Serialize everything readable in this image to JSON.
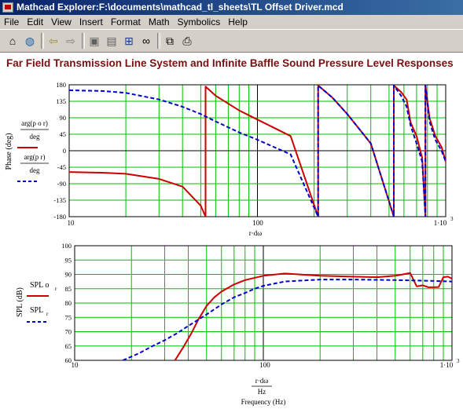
{
  "window": {
    "title": "Mathcad Explorer:F:\\documents\\mathcad_tl_sheets\\TL Offset Driver.mcd"
  },
  "menu": [
    "File",
    "Edit",
    "View",
    "Insert",
    "Format",
    "Math",
    "Symbolics",
    "Help"
  ],
  "toolbar": {
    "icons": [
      "home-icon",
      "globe-icon",
      "back-arrow-icon",
      "forward-arrow-icon",
      "copy-region-icon",
      "paste-region-icon",
      "find-icon",
      "binoculars-icon",
      "copy-icon",
      "print-icon"
    ]
  },
  "heading": "Far Field Transmission Line System and Infinite Baffle Sound Pressure Level Responses",
  "phase_chart": {
    "ylabel": "Phase (deg)",
    "legend": [
      {
        "top": "arg(p o r)",
        "bottom": "deg",
        "color": "#cc0000",
        "style": "solid"
      },
      {
        "top": "arg(p r)",
        "bottom": "deg",
        "color": "#0000cc",
        "style": "dashed"
      }
    ],
    "xticks": [
      "10",
      "100",
      "1·10"
    ],
    "xtick_exp": "3",
    "xlabel_fragment": "r·dω"
  },
  "spl_chart": {
    "ylabel": "SPL (dB)",
    "legend": [
      {
        "top": "SPL o",
        "sub": "r",
        "color": "#cc0000",
        "style": "solid"
      },
      {
        "top": "SPL",
        "sub": "r",
        "color": "#0000cc",
        "style": "dashed"
      }
    ],
    "xticks": [
      "10",
      "100",
      "1·10"
    ],
    "xtick_exp": "3",
    "xlabel_num": "r·dω",
    "xlabel_den": "Hz",
    "xlabel": "Frequency (Hz)"
  },
  "chart_data": [
    {
      "type": "line",
      "xscale": "log",
      "xlim": [
        10,
        1000
      ],
      "ylim": [
        -180,
        180
      ],
      "yticks": [
        180,
        135,
        90,
        45,
        0,
        -45,
        -90,
        -135,
        -180
      ],
      "ylabel": "Phase (deg)",
      "grid": true,
      "series": [
        {
          "name": "arg(p o r)/deg",
          "color": "#cc0000",
          "style": "solid",
          "x": [
            10,
            15,
            20,
            30,
            40,
            50,
            53,
            53,
            60,
            80,
            100,
            150,
            210,
            210,
            250,
            300,
            400,
            530,
            530,
            580,
            620,
            650,
            700,
            750,
            780,
            780,
            820,
            880,
            950,
            1000
          ],
          "y": [
            -58,
            -60,
            -63,
            -77,
            -98,
            -150,
            -180,
            175,
            150,
            110,
            85,
            40,
            -180,
            178,
            145,
            100,
            20,
            -180,
            178,
            160,
            140,
            78,
            40,
            -20,
            -180,
            178,
            90,
            40,
            10,
            -30
          ]
        },
        {
          "name": "arg(p r)/deg",
          "color": "#0000cc",
          "style": "dashed",
          "x": [
            10,
            15,
            20,
            30,
            40,
            50,
            60,
            80,
            100,
            150,
            210,
            210,
            250,
            300,
            400,
            530,
            530,
            580,
            620,
            650,
            700,
            750,
            780,
            780,
            820,
            880,
            950,
            1000
          ],
          "y": [
            165,
            163,
            158,
            140,
            120,
            100,
            80,
            50,
            30,
            -10,
            -180,
            178,
            145,
            100,
            20,
            -180,
            178,
            150,
            120,
            70,
            20,
            -30,
            -180,
            178,
            80,
            30,
            0,
            -30
          ]
        }
      ]
    },
    {
      "type": "line",
      "xscale": "log",
      "xlim": [
        10,
        1000
      ],
      "ylim": [
        60,
        100
      ],
      "yticks": [
        100,
        95,
        90,
        85,
        80,
        75,
        70,
        65,
        60
      ],
      "xlabel": "Frequency (Hz)",
      "ylabel": "SPL (dB)",
      "grid": true,
      "series": [
        {
          "name": "SPL o r",
          "color": "#cc0000",
          "style": "solid",
          "x": [
            34,
            38,
            42,
            45,
            50,
            55,
            60,
            70,
            80,
            100,
            130,
            200,
            300,
            400,
            500,
            550,
            600,
            650,
            700,
            750,
            800,
            850,
            900,
            950,
            1000
          ],
          "y": [
            60,
            65,
            70,
            74,
            79,
            82,
            84,
            86.5,
            88,
            89.5,
            90.3,
            89.5,
            89.2,
            89,
            89.5,
            90,
            90.5,
            85.8,
            86.2,
            85.5,
            85.5,
            85.6,
            89,
            89.2,
            88.5
          ]
        },
        {
          "name": "SPL r",
          "color": "#0000cc",
          "style": "dashed",
          "x": [
            18,
            22,
            25,
            30,
            35,
            40,
            50,
            60,
            70,
            80,
            90,
            100,
            130,
            200,
            300,
            500,
            700,
            1000
          ],
          "y": [
            60,
            62.5,
            64.5,
            67,
            69.5,
            72,
            76,
            79.5,
            82,
            83.5,
            85,
            86,
            87.5,
            88.2,
            88.2,
            88,
            87.8,
            87.5
          ]
        }
      ]
    }
  ]
}
